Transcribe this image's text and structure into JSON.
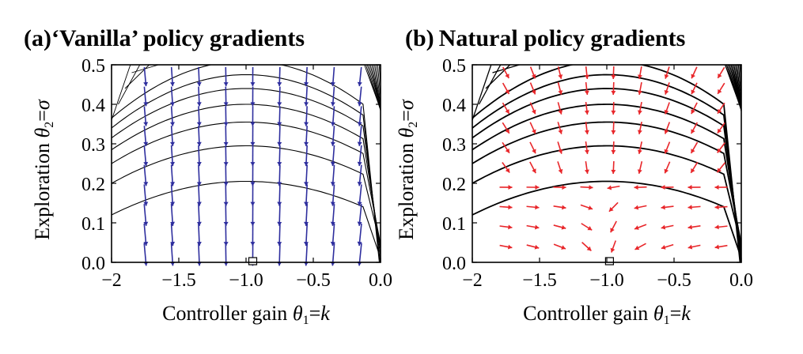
{
  "chart_data": [
    {
      "type": "quiver-contour",
      "panel_label": "(a)",
      "title": "‘Vanilla’ policy gradients",
      "xlabel": {
        "prefix": "Controller gain ",
        "sym": "θ",
        "sub": "1",
        "eq": "=",
        "var": "k"
      },
      "ylabel": {
        "prefix": "Exploration ",
        "sym": "θ",
        "sub": "2",
        "eq": "=",
        "var": "σ"
      },
      "xlim": [
        -2.0,
        0.0
      ],
      "ylim": [
        0.0,
        0.5
      ],
      "xticks": [
        "−2",
        "−1.5",
        "−1.0",
        "−0.5",
        "0.0"
      ],
      "xtick_values": [
        -2.0,
        -1.5,
        -1.0,
        -0.5,
        0.0
      ],
      "yticks": [
        "0.0",
        "0.1",
        "0.2",
        "0.3",
        "0.4",
        "0.5"
      ],
      "ytick_values": [
        0.0,
        0.1,
        0.2,
        0.3,
        0.4,
        0.5
      ],
      "optimum_marker": {
        "x": -0.95,
        "y": 0.0
      },
      "contour_peaks": [
        0.205,
        0.295,
        0.355,
        0.4,
        0.44,
        0.475,
        0.51
      ],
      "arrow_color": "#2e2e9e",
      "arrow_grid_x": [
        -1.75,
        -1.55,
        -1.35,
        -1.15,
        -0.95,
        -0.75,
        -0.55,
        -0.35,
        -0.15
      ],
      "arrow_grid_y": [
        0.02,
        0.07,
        0.12,
        0.17,
        0.22,
        0.27,
        0.32,
        0.37,
        0.42,
        0.47
      ],
      "field": "vanilla"
    },
    {
      "type": "quiver-contour",
      "panel_label": "(b)",
      "title": "Natural policy gradients",
      "xlabel": {
        "prefix": "Controller gain ",
        "sym": "θ",
        "sub": "1",
        "eq": "=",
        "var": "k"
      },
      "ylabel": {
        "prefix": "Exploration ",
        "sym": "θ",
        "sub": "2",
        "eq": "=",
        "var": "σ"
      },
      "xlim": [
        -2.0,
        0.0
      ],
      "ylim": [
        0.0,
        0.5
      ],
      "xticks": [
        "−2",
        "−1.5",
        "−1.0",
        "−0.5",
        "0.0"
      ],
      "xtick_values": [
        -2.0,
        -1.5,
        -1.0,
        -0.5,
        0.0
      ],
      "yticks": [
        "0.0",
        "0.1",
        "0.2",
        "0.3",
        "0.4",
        "0.5"
      ],
      "ytick_values": [
        0.0,
        0.1,
        0.2,
        0.3,
        0.4,
        0.5
      ],
      "optimum_marker": {
        "x": -0.98,
        "y": 0.0
      },
      "contour_peaks": [
        0.205,
        0.295,
        0.355,
        0.4,
        0.44,
        0.475,
        0.51
      ],
      "arrow_color": "#e8262a",
      "arrow_grid_x": [
        -1.75,
        -1.55,
        -1.35,
        -1.15,
        -0.95,
        -0.75,
        -0.55,
        -0.35,
        -0.15
      ],
      "arrow_grid_y": [
        0.04,
        0.09,
        0.14,
        0.19,
        0.24,
        0.29,
        0.34,
        0.39,
        0.44,
        0.48
      ],
      "field": "natural"
    }
  ]
}
